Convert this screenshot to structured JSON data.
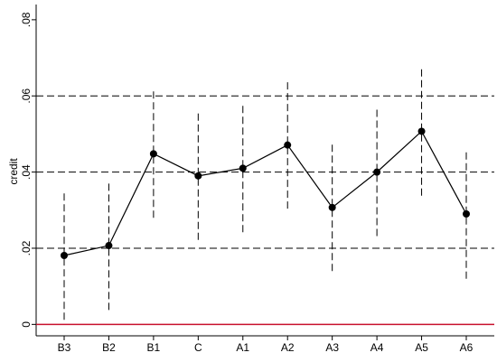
{
  "chart_data": {
    "type": "line",
    "y_label": "credit",
    "categories": [
      "B3",
      "B2",
      "B1",
      "C",
      "A1",
      "A2",
      "A3",
      "A4",
      "A5",
      "A6"
    ],
    "series": [
      {
        "color": "#000000",
        "values": [
          0.0181,
          0.0207,
          0.0448,
          0.039,
          0.041,
          0.0471,
          0.0307,
          0.04,
          0.0507,
          0.029
        ],
        "errors": [
          0.0169,
          0.0169,
          0.0168,
          0.0168,
          0.0168,
          0.0167,
          0.0167,
          0.0168,
          0.0169,
          0.017
        ]
      }
    ],
    "ylim": [
      -0.003,
      0.084
    ],
    "yticks": [
      0,
      {
        "value": 0.02,
        "label": ".02"
      },
      {
        "value": 0.04,
        "label": ".04"
      },
      {
        "value": 0.06,
        "label": ".06"
      },
      {
        "value": 0.08,
        "label": ".08"
      }
    ],
    "grid": true,
    "grid_style": "dashed",
    "reference_line": {
      "value": 0,
      "color": "#c8102e"
    }
  }
}
